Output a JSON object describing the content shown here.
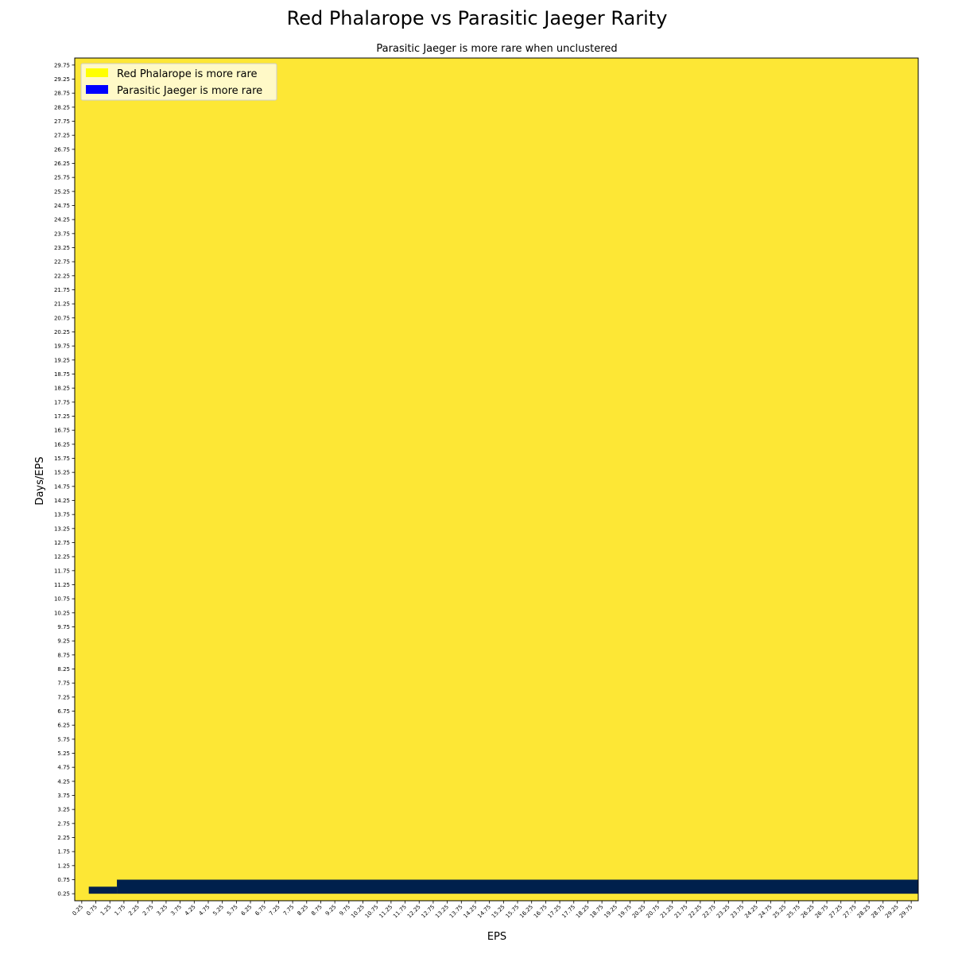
{
  "chart_data": {
    "type": "heatmap",
    "title": "Red Phalarope vs Parasitic Jaeger Rarity",
    "subtitle": "Parasitic Jaeger is more rare when unclustered",
    "xlabel": "EPS",
    "ylabel": "Days/EPS",
    "x_ticks": [
      "0.25",
      "0.75",
      "1.25",
      "1.75",
      "2.25",
      "2.75",
      "3.25",
      "3.75",
      "4.25",
      "4.75",
      "5.25",
      "5.75",
      "6.25",
      "6.75",
      "7.25",
      "7.75",
      "8.25",
      "8.75",
      "9.25",
      "9.75",
      "10.25",
      "10.75",
      "11.25",
      "11.75",
      "12.25",
      "12.75",
      "13.25",
      "13.75",
      "14.25",
      "14.75",
      "15.25",
      "15.75",
      "16.25",
      "16.75",
      "17.25",
      "17.75",
      "18.25",
      "18.75",
      "19.25",
      "19.75",
      "20.25",
      "20.75",
      "21.25",
      "21.75",
      "22.25",
      "22.75",
      "23.25",
      "23.75",
      "24.25",
      "24.75",
      "25.25",
      "25.75",
      "26.25",
      "26.75",
      "27.25",
      "27.75",
      "28.25",
      "28.75",
      "29.25",
      "29.75"
    ],
    "y_ticks": [
      "0.25",
      "0.75",
      "1.25",
      "1.75",
      "2.25",
      "2.75",
      "3.25",
      "3.75",
      "4.25",
      "4.75",
      "5.25",
      "5.75",
      "6.25",
      "6.75",
      "7.25",
      "7.75",
      "8.25",
      "8.75",
      "9.25",
      "9.75",
      "10.25",
      "10.75",
      "11.25",
      "11.75",
      "12.25",
      "12.75",
      "13.25",
      "13.75",
      "14.25",
      "14.75",
      "15.25",
      "15.75",
      "16.25",
      "16.75",
      "17.25",
      "17.75",
      "18.25",
      "18.75",
      "19.25",
      "19.75",
      "20.25",
      "20.75",
      "21.25",
      "21.75",
      "22.25",
      "22.75",
      "23.25",
      "23.75",
      "24.25",
      "24.75",
      "25.25",
      "25.75",
      "26.25",
      "26.75",
      "27.25",
      "27.75",
      "28.25",
      "28.75",
      "29.25",
      "29.75"
    ],
    "x_range": [
      0.0,
      30.0
    ],
    "y_range": [
      0.0,
      30.0
    ],
    "cell_size": 0.25,
    "default_class": "Red Phalarope is more rare",
    "regions": [
      {
        "class": "Parasitic Jaeger is more rare",
        "x_range": [
          0.5,
          1.5
        ],
        "y_range": [
          0.25,
          0.5
        ]
      },
      {
        "class": "Parasitic Jaeger is more rare",
        "x_range": [
          1.5,
          30.0
        ],
        "y_range": [
          0.25,
          0.75
        ]
      }
    ],
    "cell_colors": {
      "Red Phalarope is more rare": "#fde735",
      "Parasitic Jaeger is more rare": "#00204c"
    },
    "legend": {
      "position": "upper-left",
      "entries": [
        {
          "label": "Red Phalarope is more rare",
          "color": "#ffff00"
        },
        {
          "label": "Parasitic Jaeger is more rare",
          "color": "#0000ff"
        }
      ]
    },
    "grid": false
  }
}
